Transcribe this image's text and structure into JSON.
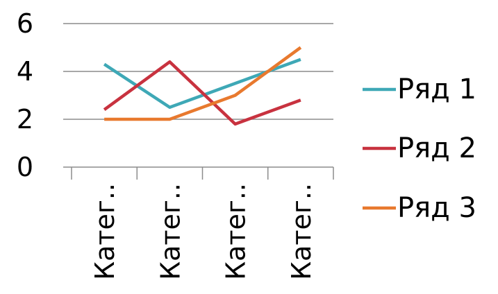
{
  "chart_data": {
    "type": "line",
    "title": "",
    "xlabel": "",
    "ylabel": "",
    "categories": [
      "Катег..",
      "Катег..",
      "Катег..",
      "Катег.."
    ],
    "ylim": [
      0,
      6
    ],
    "yticks": [
      0,
      2,
      4,
      6
    ],
    "grid": true,
    "legend_position": "right",
    "series": [
      {
        "name": "Ряд 1",
        "color": "#3ea8b6",
        "values": [
          4.3,
          2.5,
          3.5,
          4.5
        ]
      },
      {
        "name": "Ряд 2",
        "color": "#c8323f",
        "values": [
          2.4,
          4.4,
          1.8,
          2.8
        ]
      },
      {
        "name": "Ряд 3",
        "color": "#e8792e",
        "values": [
          2.0,
          2.0,
          3.0,
          5.0
        ]
      }
    ]
  }
}
